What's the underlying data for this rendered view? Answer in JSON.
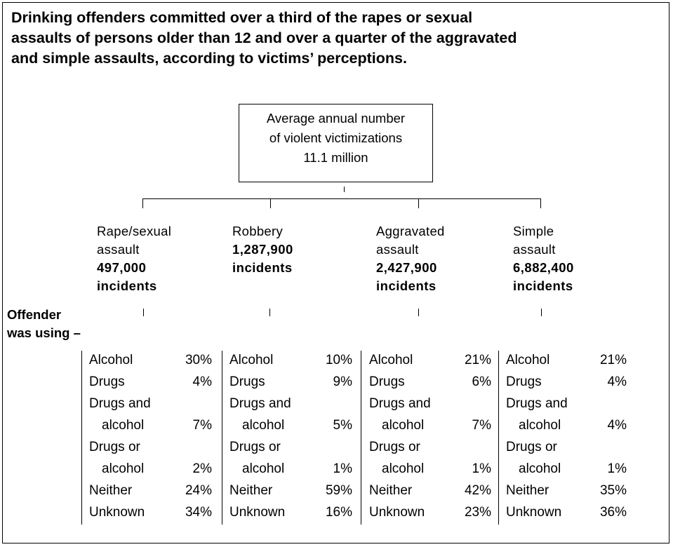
{
  "title_lines": [
    "Drinking offenders committed over a third of the rapes or sexual",
    "assaults of persons older than 12 and over a quarter of the aggravated",
    "and simple assaults, according to victims’ perceptions."
  ],
  "top_box": {
    "line1": "Average annual number",
    "line2": "of violent victimizations",
    "line3": "11.1 million"
  },
  "categories": [
    {
      "label_lines": [
        "Rape/sexual",
        "assault"
      ],
      "count": "497,000",
      "unit": "incidents"
    },
    {
      "label_lines": [
        "Robbery"
      ],
      "count": "1,287,900",
      "unit": "incidents"
    },
    {
      "label_lines": [
        "Aggravated",
        "assault"
      ],
      "count": "2,427,900",
      "unit": "incidents"
    },
    {
      "label_lines": [
        "Simple",
        "assault"
      ],
      "count": "6,882,400",
      "unit": "incidents"
    }
  ],
  "offender_label": {
    "line1": "Offender",
    "line2": "was using –"
  },
  "columns": [
    {
      "rows": [
        {
          "l1": "Alcohol",
          "v": "30%"
        },
        {
          "l1": "Drugs",
          "v": "4%"
        },
        {
          "l1": "Drugs and",
          "l2": "alcohol",
          "v": "7%"
        },
        {
          "l1": "Drugs or",
          "l2": "alcohol",
          "v": "2%"
        },
        {
          "l1": "Neither",
          "v": "24%"
        },
        {
          "l1": "Unknown",
          "v": "34%"
        }
      ]
    },
    {
      "rows": [
        {
          "l1": "Alcohol",
          "v": "10%"
        },
        {
          "l1": "Drugs",
          "v": "9%"
        },
        {
          "l1": "Drugs and",
          "l2": "alcohol",
          "v": "5%"
        },
        {
          "l1": "Drugs or",
          "l2": "alcohol",
          "v": "1%"
        },
        {
          "l1": "Neither",
          "v": "59%"
        },
        {
          "l1": "Unknown",
          "v": "16%"
        }
      ]
    },
    {
      "rows": [
        {
          "l1": "Alcohol",
          "v": "21%"
        },
        {
          "l1": "Drugs",
          "v": "6%"
        },
        {
          "l1": "Drugs and",
          "l2": "alcohol",
          "v": "7%"
        },
        {
          "l1": "Drugs or",
          "l2": "alcohol",
          "v": "1%"
        },
        {
          "l1": "Neither",
          "v": "42%"
        },
        {
          "l1": "Unknown",
          "v": "23%"
        }
      ]
    },
    {
      "rows": [
        {
          "l1": "Alcohol",
          "v": "21%"
        },
        {
          "l1": "Drugs",
          "v": "4%"
        },
        {
          "l1": "Drugs and",
          "l2": "alcohol",
          "v": "4%"
        },
        {
          "l1": "Drugs or",
          "l2": "alcohol",
          "v": "1%"
        },
        {
          "l1": "Neither",
          "v": "35%"
        },
        {
          "l1": "Unknown",
          "v": "36%"
        }
      ]
    }
  ]
}
